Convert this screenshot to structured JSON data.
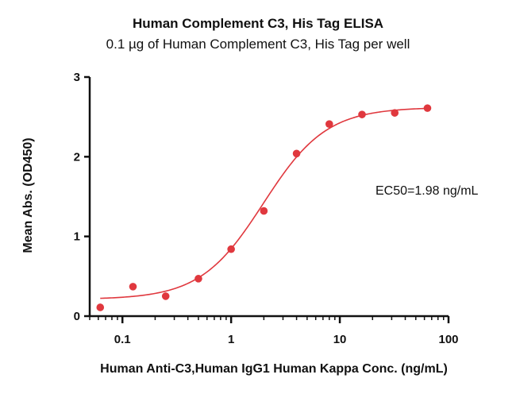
{
  "chart_data": {
    "type": "scatter",
    "title": "Human Complement C3, His Tag ELISA",
    "subtitle": "0.1 µg of Human Complement C3, His Tag per well",
    "xlabel": "Human Anti-C3,Human IgG1  Human Kappa Conc. (ng/mL)",
    "ylabel": "Mean Abs. (OD450)",
    "x_scale": "log",
    "xlim": [
      0.05,
      100
    ],
    "ylim": [
      0,
      3
    ],
    "x_ticks": [
      0.1,
      1,
      10,
      100
    ],
    "x_tick_labels": [
      "0.1",
      "1",
      "10",
      "100"
    ],
    "y_ticks": [
      0,
      1,
      2,
      3
    ],
    "y_tick_labels": [
      "0",
      "1",
      "2",
      "3"
    ],
    "grid": false,
    "series": [
      {
        "x": [
          0.0625,
          0.125,
          0.25,
          0.5,
          1,
          2,
          4,
          8,
          16,
          32,
          64
        ],
        "y": [
          0.11,
          0.37,
          0.25,
          0.47,
          0.84,
          1.32,
          2.04,
          2.41,
          2.53,
          2.55,
          2.61
        ],
        "color": "#e0383e",
        "fit": "4PL"
      }
    ],
    "fit_params": {
      "bottom": 0.21,
      "top": 2.62,
      "ec50": 1.98,
      "hill": 1.5
    },
    "annotations": [
      "EC50=1.98 ng/mL"
    ]
  }
}
